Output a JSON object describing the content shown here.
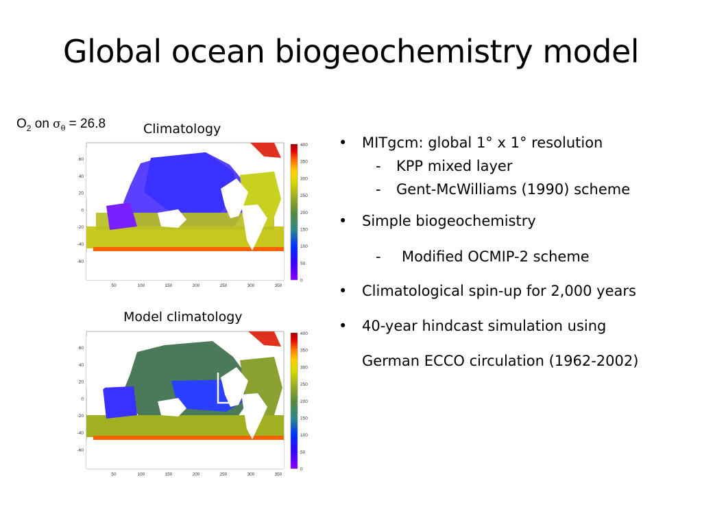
{
  "slide": {
    "title": "Global ocean biogeochemistry model",
    "o2_prefix": "O",
    "o2_sub": "2",
    "o2_on": " on ",
    "sigma": "σ",
    "theta": "θ",
    "o2_value": " = 26.8",
    "map_top_label": "Climatology",
    "map_bottom_label": "Model climatology"
  },
  "bullets": [
    {
      "text": "MITgcm: global 1° x 1° resolution",
      "subs": [
        "KPP mixed layer",
        "Gent-McWilliams (1990) scheme"
      ]
    },
    {
      "text": "Simple biogeochemistry",
      "subs": [
        "Modified OCMIP-2 scheme"
      ]
    },
    {
      "text": "Climatological spin-up for 2,000 years",
      "subs": []
    },
    {
      "text": "40-year hindcast simulation using",
      "subs": []
    },
    {
      "text": "German ECCO circulation (1962-2002)",
      "subs": []
    }
  ],
  "map_axes": {
    "x_ticks": [
      "50",
      "100",
      "150",
      "200",
      "250",
      "300",
      "350"
    ],
    "y_ticks": [
      "60",
      "40",
      "20",
      "0",
      "-20",
      "-40",
      "-60"
    ],
    "colorbar_ticks": [
      "400",
      "350",
      "300",
      "250",
      "200",
      "150",
      "100",
      "50",
      "0"
    ],
    "colorbar_colors": [
      "#8a00ff",
      "#3a00ff",
      "#0030ff",
      "#2a8a8a",
      "#5a8a3a",
      "#a0b020",
      "#d8d800",
      "#ffd000",
      "#ff7000",
      "#e00000",
      "#a00000"
    ],
    "colors": {
      "land": "#ffffff",
      "low_o2": "#7a20ff",
      "mid_o2": "#4a7a5a",
      "high_o2": "#d8d820",
      "shelf": "#ff6000"
    }
  }
}
